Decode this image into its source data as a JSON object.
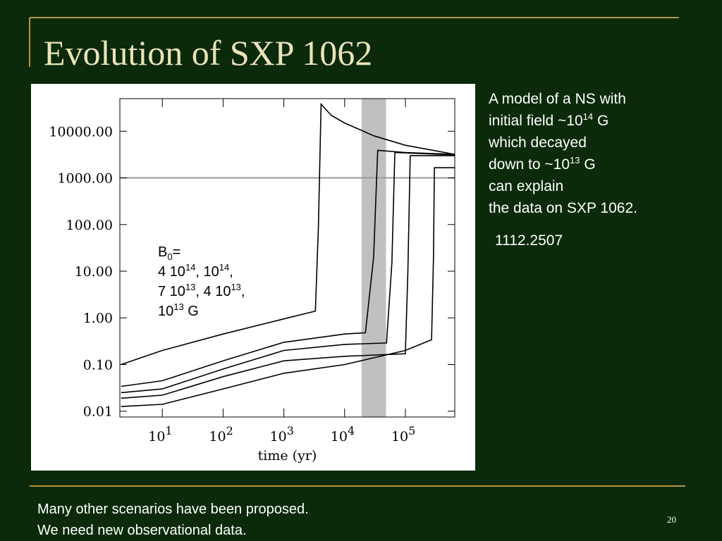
{
  "header": {
    "title": "Evolution of SXP 1062"
  },
  "description": [
    [
      "A model of a NS with"
    ],
    [
      "initial field ~10",
      {
        "sup": "14"
      },
      " G"
    ],
    [
      "which decayed"
    ],
    [
      "down to ~10",
      {
        "sup": "13"
      },
      " G"
    ],
    [
      "can explain"
    ],
    [
      "the data on SXP 1062."
    ]
  ],
  "note": "1112.2507",
  "footer": {
    "lines": [
      "Many other scenarios have been proposed.",
      "We need new observational data."
    ],
    "page": "20"
  },
  "chart_data": {
    "type": "line",
    "xscale": "log",
    "yscale": "log",
    "xlabel": "time (yr)",
    "xlim": [
      2,
      650000
    ],
    "ylim": [
      0.0075,
      50000
    ],
    "xticks": [
      {
        "value": 10,
        "label": "10",
        "sup": "1"
      },
      {
        "value": 100,
        "label": "10",
        "sup": "2"
      },
      {
        "value": 1000,
        "label": "10",
        "sup": "3"
      },
      {
        "value": 10000,
        "label": "10",
        "sup": "4"
      },
      {
        "value": 100000,
        "label": "10",
        "sup": "5"
      }
    ],
    "yticks": [
      {
        "value": 0.01,
        "label": "0.01"
      },
      {
        "value": 0.1,
        "label": "0.10"
      },
      {
        "value": 1,
        "label": "1.00"
      },
      {
        "value": 10,
        "label": "10.00"
      },
      {
        "value": 100,
        "label": "100.00"
      },
      {
        "value": 1000,
        "label": "1000.00"
      },
      {
        "value": 10000,
        "label": "10000.00"
      }
    ],
    "reference_line": {
      "y": 1000,
      "color": "#999999"
    },
    "shaded_x": {
      "range": [
        19000,
        48000
      ],
      "color": "#c0c0c2"
    },
    "annotation": [
      [
        "B",
        {
          "sub": "0"
        },
        "="
      ],
      [
        "4 10",
        {
          "sup": "14"
        },
        ", 10",
        {
          "sup": "14"
        },
        ","
      ],
      [
        "7 10",
        {
          "sup": "13"
        },
        ", 4 10",
        {
          "sup": "13"
        },
        ","
      ],
      [
        "10",
        {
          "sup": "13"
        },
        " G"
      ]
    ],
    "series": [
      {
        "color": "#000000",
        "x": [
          2.1,
          10,
          100,
          1000,
          3300,
          3700,
          4100,
          6000,
          10000,
          30000,
          100000,
          650000
        ],
        "values": [
          0.1,
          0.2,
          0.45,
          0.95,
          1.4,
          90,
          38000,
          22000,
          15000,
          8000,
          5000,
          3200
        ]
      },
      {
        "color": "#000000",
        "x": [
          2.1,
          10,
          100,
          1000,
          10000,
          22000,
          30000,
          35000,
          100000,
          650000
        ],
        "values": [
          0.034,
          0.045,
          0.12,
          0.3,
          0.45,
          0.48,
          20,
          3900,
          3500,
          3200
        ]
      },
      {
        "color": "#000000",
        "x": [
          2.1,
          10,
          100,
          1000,
          10000,
          49000,
          60000,
          67000,
          650000
        ],
        "values": [
          0.025,
          0.03,
          0.08,
          0.2,
          0.27,
          0.29,
          15,
          3500,
          3100
        ]
      },
      {
        "color": "#000000",
        "x": [
          2.1,
          10,
          100,
          1000,
          10000,
          100000,
          110000,
          120000,
          650000
        ],
        "values": [
          0.019,
          0.022,
          0.055,
          0.12,
          0.15,
          0.17,
          10,
          3000,
          3000
        ]
      },
      {
        "color": "#000000",
        "x": [
          2.1,
          10,
          100,
          1000,
          10000,
          100000,
          270000,
          290000,
          300000,
          650000
        ],
        "values": [
          0.0126,
          0.014,
          0.03,
          0.065,
          0.1,
          0.2,
          0.34,
          20,
          1650,
          1650
        ]
      }
    ]
  }
}
